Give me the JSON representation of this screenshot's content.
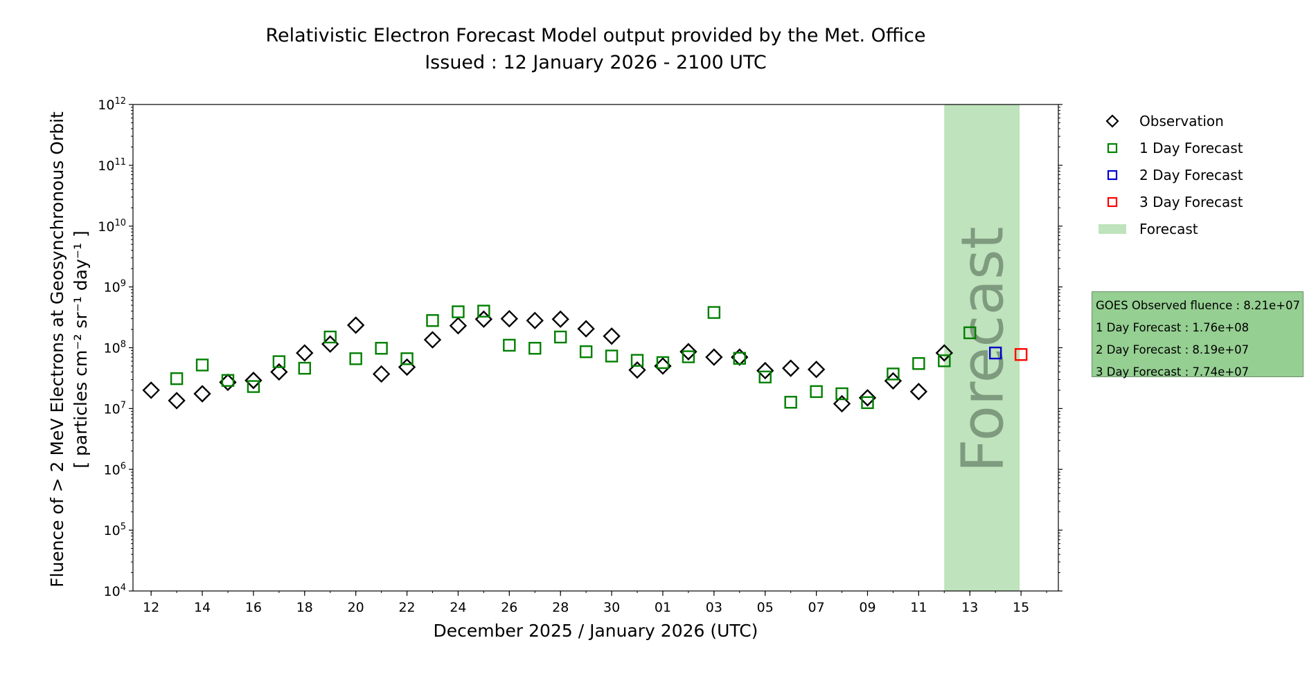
{
  "chart_data": {
    "type": "scatter",
    "title": "Relativistic Electron Forecast Model output provided by the Met. Office",
    "subtitle": "Issued : 12 January 2026 - 2100 UTC",
    "ylabel_line1": "Fluence of > 2 MeV Electrons at Geosynchronous Orbit",
    "ylabel_line2": "[ particles cm⁻² sr⁻¹ day⁻¹ ]",
    "xlabel": "December 2025 / January 2026 (UTC)",
    "y_scale": "log",
    "ylim": [
      10000,
      1000000000000
    ],
    "y_ticks": [
      {
        "value": 10000,
        "base": "10",
        "exp": "4"
      },
      {
        "value": 100000,
        "base": "10",
        "exp": "5"
      },
      {
        "value": 1000000,
        "base": "10",
        "exp": "6"
      },
      {
        "value": 10000000,
        "base": "10",
        "exp": "7"
      },
      {
        "value": 100000000,
        "base": "10",
        "exp": "8"
      },
      {
        "value": 1000000000,
        "base": "10",
        "exp": "9"
      },
      {
        "value": 10000000000,
        "base": "10",
        "exp": "10"
      },
      {
        "value": 100000000000,
        "base": "10",
        "exp": "11"
      },
      {
        "value": 1000000000000,
        "base": "10",
        "exp": "12"
      }
    ],
    "xlim": [
      "2025-12-11T07:00",
      "2026-01-16T11:00"
    ],
    "x_ticks": [
      {
        "date": "2025-12-12",
        "label": "12"
      },
      {
        "date": "2025-12-14",
        "label": "14"
      },
      {
        "date": "2025-12-16",
        "label": "16"
      },
      {
        "date": "2025-12-18",
        "label": "18"
      },
      {
        "date": "2025-12-20",
        "label": "20"
      },
      {
        "date": "2025-12-22",
        "label": "22"
      },
      {
        "date": "2025-12-24",
        "label": "24"
      },
      {
        "date": "2025-12-26",
        "label": "26"
      },
      {
        "date": "2025-12-28",
        "label": "28"
      },
      {
        "date": "2025-12-30",
        "label": "30"
      },
      {
        "date": "2026-01-01",
        "label": "01"
      },
      {
        "date": "2026-01-03",
        "label": "03"
      },
      {
        "date": "2026-01-05",
        "label": "05"
      },
      {
        "date": "2026-01-07",
        "label": "07"
      },
      {
        "date": "2026-01-09",
        "label": "09"
      },
      {
        "date": "2026-01-11",
        "label": "11"
      },
      {
        "date": "2026-01-13",
        "label": "13"
      },
      {
        "date": "2026-01-15",
        "label": "15"
      }
    ],
    "forecast_region": {
      "from": "2026-01-13",
      "to": "2026-01-15",
      "label": "Forecast",
      "color": "#bfe3bc"
    },
    "series": [
      {
        "name": "Observation",
        "marker": "diamond",
        "color": "#000000",
        "points": [
          {
            "x": "2025-12-12",
            "y": 20000000.0
          },
          {
            "x": "2025-12-13",
            "y": 13500000.0
          },
          {
            "x": "2025-12-14",
            "y": 17500000.0
          },
          {
            "x": "2025-12-15",
            "y": 27000000.0
          },
          {
            "x": "2025-12-16",
            "y": 29000000.0
          },
          {
            "x": "2025-12-17",
            "y": 40000000.0
          },
          {
            "x": "2025-12-18",
            "y": 82000000.0
          },
          {
            "x": "2025-12-19",
            "y": 115000000.0
          },
          {
            "x": "2025-12-20",
            "y": 235000000.0
          },
          {
            "x": "2025-12-21",
            "y": 37000000.0
          },
          {
            "x": "2025-12-22",
            "y": 48000000.0
          },
          {
            "x": "2025-12-23",
            "y": 135000000.0
          },
          {
            "x": "2025-12-24",
            "y": 230000000.0
          },
          {
            "x": "2025-12-25",
            "y": 295000000.0
          },
          {
            "x": "2025-12-26",
            "y": 300000000.0
          },
          {
            "x": "2025-12-27",
            "y": 280000000.0
          },
          {
            "x": "2025-12-28",
            "y": 295000000.0
          },
          {
            "x": "2025-12-29",
            "y": 205000000.0
          },
          {
            "x": "2025-12-30",
            "y": 155000000.0
          },
          {
            "x": "2025-12-31",
            "y": 43000000.0
          },
          {
            "x": "2026-01-01",
            "y": 50000000.0
          },
          {
            "x": "2026-01-02",
            "y": 86000000.0
          },
          {
            "x": "2026-01-03",
            "y": 70000000.0
          },
          {
            "x": "2026-01-04",
            "y": 70000000.0
          },
          {
            "x": "2026-01-05",
            "y": 42000000.0
          },
          {
            "x": "2026-01-06",
            "y": 46000000.0
          },
          {
            "x": "2026-01-07",
            "y": 44000000.0
          },
          {
            "x": "2026-01-08",
            "y": 12000000.0
          },
          {
            "x": "2026-01-09",
            "y": 15000000.0
          },
          {
            "x": "2026-01-10",
            "y": 28500000.0
          },
          {
            "x": "2026-01-11",
            "y": 19000000.0
          },
          {
            "x": "2026-01-12",
            "y": 82100000.0
          }
        ]
      },
      {
        "name": "1 Day Forecast",
        "marker": "square",
        "color": "#007f00",
        "points": [
          {
            "x": "2025-12-13",
            "y": 31000000.0
          },
          {
            "x": "2025-12-14",
            "y": 52000000.0
          },
          {
            "x": "2025-12-15",
            "y": 29000000.0
          },
          {
            "x": "2025-12-16",
            "y": 23000000.0
          },
          {
            "x": "2025-12-17",
            "y": 59000000.0
          },
          {
            "x": "2025-12-18",
            "y": 46000000.0
          },
          {
            "x": "2025-12-19",
            "y": 150000000.0
          },
          {
            "x": "2025-12-20",
            "y": 66000000.0
          },
          {
            "x": "2025-12-21",
            "y": 98000000.0
          },
          {
            "x": "2025-12-22",
            "y": 66000000.0
          },
          {
            "x": "2025-12-23",
            "y": 280000000.0
          },
          {
            "x": "2025-12-24",
            "y": 390000000.0
          },
          {
            "x": "2025-12-25",
            "y": 400000000.0
          },
          {
            "x": "2025-12-26",
            "y": 110000000.0
          },
          {
            "x": "2025-12-27",
            "y": 98000000.0
          },
          {
            "x": "2025-12-28",
            "y": 150000000.0
          },
          {
            "x": "2025-12-29",
            "y": 86000000.0
          },
          {
            "x": "2025-12-30",
            "y": 73000000.0
          },
          {
            "x": "2025-12-31",
            "y": 62000000.0
          },
          {
            "x": "2026-01-01",
            "y": 57000000.0
          },
          {
            "x": "2026-01-02",
            "y": 71000000.0
          },
          {
            "x": "2026-01-03",
            "y": 380000000.0
          },
          {
            "x": "2026-01-04",
            "y": 67000000.0
          },
          {
            "x": "2026-01-05",
            "y": 33000000.0
          },
          {
            "x": "2026-01-06",
            "y": 12700000.0
          },
          {
            "x": "2026-01-07",
            "y": 19000000.0
          },
          {
            "x": "2026-01-08",
            "y": 17500000.0
          },
          {
            "x": "2026-01-09",
            "y": 12500000.0
          },
          {
            "x": "2026-01-10",
            "y": 37000000.0
          },
          {
            "x": "2026-01-11",
            "y": 55000000.0
          },
          {
            "x": "2026-01-12",
            "y": 61000000.0
          },
          {
            "x": "2026-01-13",
            "y": 176000000.0
          }
        ]
      },
      {
        "name": "2 Day Forecast",
        "marker": "square",
        "color": "#0000cc",
        "points": [
          {
            "x": "2026-01-14",
            "y": 81900000.0
          }
        ]
      },
      {
        "name": "3 Day Forecast",
        "marker": "square",
        "color": "#ff0000",
        "points": [
          {
            "x": "2026-01-15",
            "y": 77400000.0
          }
        ]
      }
    ],
    "legend": {
      "placement": "right",
      "items": [
        {
          "label": "Observation",
          "marker": "diamond",
          "color": "#000000"
        },
        {
          "label": "1 Day Forecast",
          "marker": "square",
          "color": "#007f00"
        },
        {
          "label": "2 Day Forecast",
          "marker": "square",
          "color": "#0000cc"
        },
        {
          "label": "3 Day Forecast",
          "marker": "square",
          "color": "#ff0000"
        },
        {
          "label": "Forecast",
          "marker": "patch",
          "color": "#bfe3bc"
        }
      ]
    },
    "info_box": {
      "lines": [
        "GOES Observed fluence : 8.21e+07",
        "1 Day Forecast : 1.76e+08",
        "2 Day Forecast : 8.19e+07",
        "3 Day Forecast : 7.74e+07"
      ],
      "background": "#95cf92"
    }
  }
}
